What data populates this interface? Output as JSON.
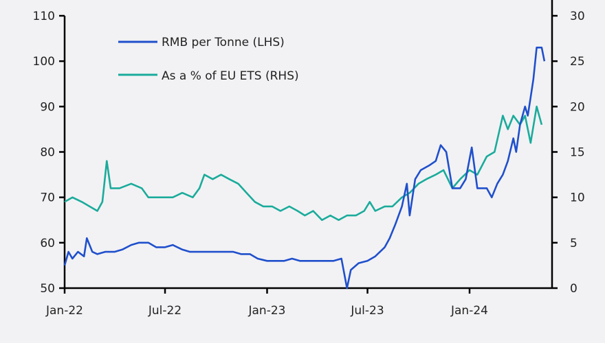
{
  "chart_data": {
    "type": "line",
    "title": "",
    "xlabel": "",
    "ylabel_left": "",
    "ylabel_right": "",
    "x_ticks": [
      "Jan-22",
      "Jul-22",
      "Jan-23",
      "Jul-23",
      "Jan-24"
    ],
    "x_tick_dates": [
      "2022-01-01",
      "2022-07-01",
      "2023-01-01",
      "2023-07-01",
      "2024-01-01"
    ],
    "y_left": {
      "range": [
        50,
        110
      ],
      "ticks": [
        "50",
        "60",
        "70",
        "80",
        "90",
        "100",
        "110"
      ]
    },
    "y_right": {
      "range": [
        0,
        30
      ],
      "ticks": [
        "0",
        "5",
        "10",
        "15",
        "20",
        "25",
        "30"
      ]
    },
    "grid": false,
    "legend_position": "top-left",
    "series": [
      {
        "name": "RMB per Tonne (LHS)",
        "axis": "left",
        "color": "#1f4fcc",
        "points": [
          [
            "2022-01-01",
            55
          ],
          [
            "2022-01-08",
            58
          ],
          [
            "2022-01-15",
            56.5
          ],
          [
            "2022-01-25",
            58
          ],
          [
            "2022-02-05",
            57
          ],
          [
            "2022-02-10",
            61
          ],
          [
            "2022-02-20",
            58
          ],
          [
            "2022-03-01",
            57.5
          ],
          [
            "2022-03-15",
            58
          ],
          [
            "2022-04-01",
            58
          ],
          [
            "2022-04-15",
            58.5
          ],
          [
            "2022-05-01",
            59.5
          ],
          [
            "2022-05-15",
            60
          ],
          [
            "2022-06-01",
            60
          ],
          [
            "2022-06-15",
            59
          ],
          [
            "2022-07-01",
            59
          ],
          [
            "2022-07-15",
            59.5
          ],
          [
            "2022-08-01",
            58.5
          ],
          [
            "2022-08-15",
            58
          ],
          [
            "2022-09-01",
            58
          ],
          [
            "2022-09-15",
            58
          ],
          [
            "2022-10-01",
            58
          ],
          [
            "2022-10-15",
            58
          ],
          [
            "2022-11-01",
            58
          ],
          [
            "2022-11-15",
            57.5
          ],
          [
            "2022-12-01",
            57.5
          ],
          [
            "2022-12-15",
            56.5
          ],
          [
            "2023-01-01",
            56
          ],
          [
            "2023-01-15",
            56
          ],
          [
            "2023-02-01",
            56
          ],
          [
            "2023-02-15",
            56.5
          ],
          [
            "2023-03-01",
            56
          ],
          [
            "2023-03-15",
            56
          ],
          [
            "2023-04-01",
            56
          ],
          [
            "2023-04-15",
            56
          ],
          [
            "2023-05-01",
            56
          ],
          [
            "2023-05-15",
            56.5
          ],
          [
            "2023-05-25",
            50
          ],
          [
            "2023-06-01",
            54
          ],
          [
            "2023-06-15",
            55.5
          ],
          [
            "2023-07-01",
            56
          ],
          [
            "2023-07-15",
            57
          ],
          [
            "2023-08-01",
            59
          ],
          [
            "2023-08-10",
            61
          ],
          [
            "2023-08-20",
            64
          ],
          [
            "2023-09-01",
            68
          ],
          [
            "2023-09-10",
            73
          ],
          [
            "2023-09-15",
            66
          ],
          [
            "2023-09-25",
            74
          ],
          [
            "2023-10-05",
            76
          ],
          [
            "2023-10-20",
            77
          ],
          [
            "2023-11-01",
            78
          ],
          [
            "2023-11-10",
            81.5
          ],
          [
            "2023-11-20",
            80
          ],
          [
            "2023-12-01",
            72
          ],
          [
            "2023-12-15",
            72
          ],
          [
            "2023-12-25",
            74
          ],
          [
            "2024-01-05",
            81
          ],
          [
            "2024-01-15",
            72
          ],
          [
            "2024-02-01",
            72
          ],
          [
            "2024-02-10",
            70
          ],
          [
            "2024-02-20",
            73
          ],
          [
            "2024-03-01",
            75
          ],
          [
            "2024-03-10",
            78
          ],
          [
            "2024-03-20",
            83
          ],
          [
            "2024-03-25",
            80
          ],
          [
            "2024-04-01",
            86
          ],
          [
            "2024-04-10",
            90
          ],
          [
            "2024-04-15",
            88
          ],
          [
            "2024-04-20",
            92
          ],
          [
            "2024-04-25",
            96
          ],
          [
            "2024-05-01",
            103
          ],
          [
            "2024-05-10",
            103
          ],
          [
            "2024-05-15",
            100
          ]
        ]
      },
      {
        "name": "As a % of EU ETS (RHS)",
        "axis": "right",
        "color": "#1aab9b",
        "points": [
          [
            "2022-01-01",
            9.5
          ],
          [
            "2022-01-15",
            10
          ],
          [
            "2022-02-01",
            9.5
          ],
          [
            "2022-02-15",
            9
          ],
          [
            "2022-03-01",
            8.5
          ],
          [
            "2022-03-10",
            9.5
          ],
          [
            "2022-03-18",
            14
          ],
          [
            "2022-03-25",
            11
          ],
          [
            "2022-04-10",
            11
          ],
          [
            "2022-05-01",
            11.5
          ],
          [
            "2022-05-20",
            11
          ],
          [
            "2022-06-01",
            10
          ],
          [
            "2022-06-15",
            10
          ],
          [
            "2022-07-01",
            10
          ],
          [
            "2022-07-15",
            10
          ],
          [
            "2022-08-01",
            10.5
          ],
          [
            "2022-08-20",
            10
          ],
          [
            "2022-09-01",
            11
          ],
          [
            "2022-09-10",
            12.5
          ],
          [
            "2022-09-25",
            12
          ],
          [
            "2022-10-10",
            12.5
          ],
          [
            "2022-10-25",
            12
          ],
          [
            "2022-11-10",
            11.5
          ],
          [
            "2022-11-25",
            10.5
          ],
          [
            "2022-12-10",
            9.5
          ],
          [
            "2022-12-25",
            9
          ],
          [
            "2023-01-10",
            9
          ],
          [
            "2023-01-25",
            8.5
          ],
          [
            "2023-02-10",
            9
          ],
          [
            "2023-02-25",
            8.5
          ],
          [
            "2023-03-10",
            8
          ],
          [
            "2023-03-25",
            8.5
          ],
          [
            "2023-04-10",
            7.5
          ],
          [
            "2023-04-25",
            8
          ],
          [
            "2023-05-10",
            7.5
          ],
          [
            "2023-05-25",
            8
          ],
          [
            "2023-06-10",
            8
          ],
          [
            "2023-06-25",
            8.5
          ],
          [
            "2023-07-05",
            9.5
          ],
          [
            "2023-07-15",
            8.5
          ],
          [
            "2023-08-01",
            9
          ],
          [
            "2023-08-15",
            9
          ],
          [
            "2023-09-01",
            10
          ],
          [
            "2023-09-15",
            10.5
          ],
          [
            "2023-10-01",
            11.5
          ],
          [
            "2023-10-15",
            12
          ],
          [
            "2023-11-01",
            12.5
          ],
          [
            "2023-11-15",
            13
          ],
          [
            "2023-12-01",
            11
          ],
          [
            "2023-12-15",
            12
          ],
          [
            "2024-01-01",
            13
          ],
          [
            "2024-01-15",
            12.5
          ],
          [
            "2024-02-01",
            14.5
          ],
          [
            "2024-02-15",
            15
          ],
          [
            "2024-03-01",
            19
          ],
          [
            "2024-03-10",
            17.5
          ],
          [
            "2024-03-20",
            19
          ],
          [
            "2024-04-01",
            18
          ],
          [
            "2024-04-10",
            19
          ],
          [
            "2024-04-20",
            16
          ],
          [
            "2024-05-01",
            20
          ],
          [
            "2024-05-10",
            18
          ]
        ]
      }
    ]
  }
}
